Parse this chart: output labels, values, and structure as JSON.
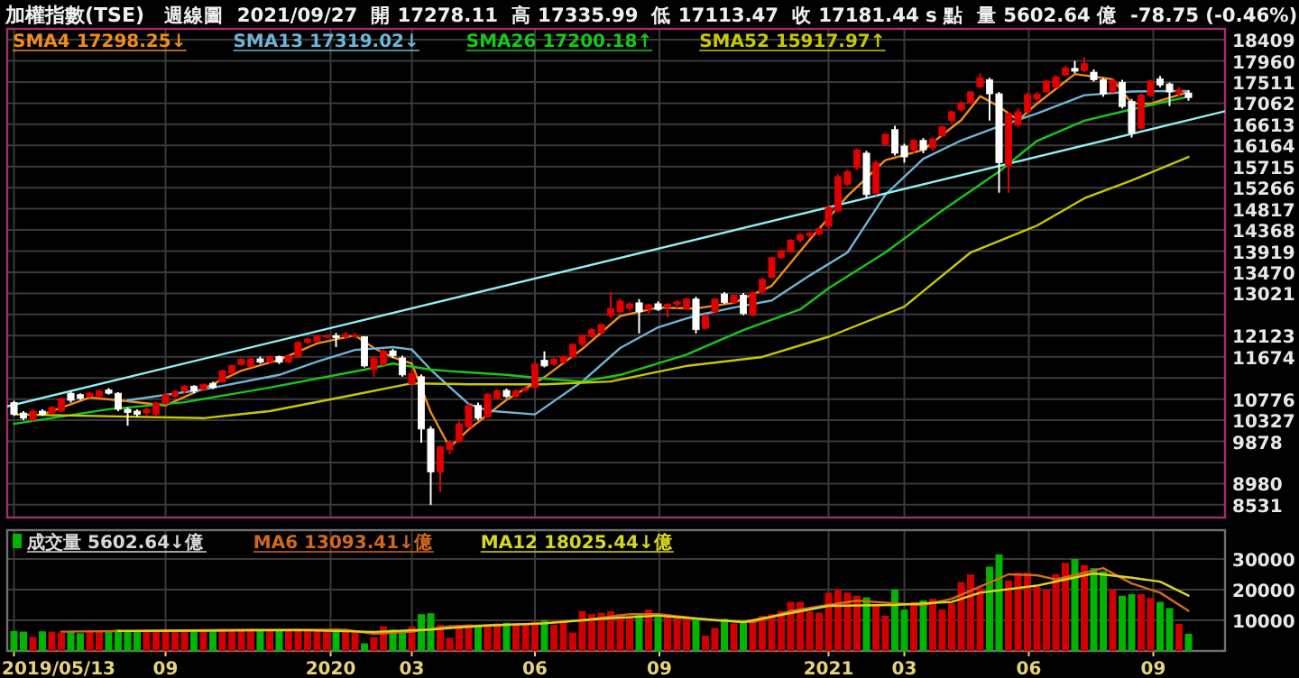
{
  "chart_data": [
    {
      "type": "candlestick",
      "title": "加權指數(TSE)",
      "subtitle": "週線圖  2021/09/27  開 17278.11  高 17335.99  低 17113.47  收 17181.44 s 點  量 5602.64 億  -78.75 (-0.46%)",
      "x": [
        "2019-05-13",
        "2019-05-20",
        "2019-05-27",
        "2019-06-03",
        "2019-06-10",
        "2019-06-17",
        "2019-06-24",
        "2019-07-01",
        "2019-07-08",
        "2019-07-15",
        "2019-07-22",
        "2019-07-29",
        "2019-08-05",
        "2019-08-12",
        "2019-08-19",
        "2019-08-26",
        "2019-09-02",
        "2019-09-09",
        "2019-09-16",
        "2019-09-23",
        "2019-09-30",
        "2019-10-07",
        "2019-10-14",
        "2019-10-21",
        "2019-10-28",
        "2019-11-04",
        "2019-11-11",
        "2019-11-18",
        "2019-11-25",
        "2019-12-02",
        "2019-12-09",
        "2019-12-16",
        "2019-12-23",
        "2019-12-30",
        "2020-01-06",
        "2020-01-13",
        "2020-01-20",
        "2020-01-27",
        "2020-02-03",
        "2020-02-10",
        "2020-02-17",
        "2020-02-24",
        "2020-03-02",
        "2020-03-09",
        "2020-03-16",
        "2020-03-23",
        "2020-03-30",
        "2020-04-06",
        "2020-04-13",
        "2020-04-20",
        "2020-04-27",
        "2020-05-04",
        "2020-05-11",
        "2020-05-18",
        "2020-05-25",
        "2020-06-01",
        "2020-06-08",
        "2020-06-15",
        "2020-06-22",
        "2020-06-29",
        "2020-07-06",
        "2020-07-13",
        "2020-07-20",
        "2020-07-27",
        "2020-08-03",
        "2020-08-10",
        "2020-08-17",
        "2020-08-24",
        "2020-08-31",
        "2020-09-07",
        "2020-09-14",
        "2020-09-21",
        "2020-09-28",
        "2020-10-05",
        "2020-10-12",
        "2020-10-19",
        "2020-10-26",
        "2020-11-02",
        "2020-11-09",
        "2020-11-16",
        "2020-11-23",
        "2020-11-30",
        "2020-12-07",
        "2020-12-14",
        "2020-12-21",
        "2020-12-28",
        "2021-01-04",
        "2021-01-11",
        "2021-01-18",
        "2021-01-25",
        "2021-02-01",
        "2021-02-08",
        "2021-02-15",
        "2021-02-22",
        "2021-03-01",
        "2021-03-08",
        "2021-03-15",
        "2021-03-22",
        "2021-03-29",
        "2021-04-05",
        "2021-04-12",
        "2021-04-19",
        "2021-04-26",
        "2021-05-03",
        "2021-05-10",
        "2021-05-17",
        "2021-05-24",
        "2021-05-31",
        "2021-06-07",
        "2021-06-14",
        "2021-06-21",
        "2021-06-28",
        "2021-07-05",
        "2021-07-12",
        "2021-07-19",
        "2021-07-26",
        "2021-08-02",
        "2021-08-09",
        "2021-08-16",
        "2021-08-23",
        "2021-08-30",
        "2021-09-06",
        "2021-09-13",
        "2021-09-20",
        "2021-09-27"
      ],
      "ohlc": [
        [
          10700,
          10740,
          10420,
          10450
        ],
        [
          10480,
          10520,
          10330,
          10370
        ],
        [
          10330,
          10560,
          10300,
          10520
        ],
        [
          10520,
          10560,
          10420,
          10445
        ],
        [
          10480,
          10630,
          10450,
          10600
        ],
        [
          10520,
          10800,
          10500,
          10790
        ],
        [
          10900,
          10950,
          10700,
          10750
        ],
        [
          10870,
          10900,
          10760,
          10790
        ],
        [
          10830,
          10930,
          10800,
          10900
        ],
        [
          10830,
          10980,
          10800,
          10950
        ],
        [
          10970,
          11010,
          10870,
          10900
        ],
        [
          10900,
          10920,
          10520,
          10560
        ],
        [
          10560,
          10600,
          10210,
          10490
        ],
        [
          10520,
          10560,
          10400,
          10450
        ],
        [
          10480,
          10600,
          10430,
          10560
        ],
        [
          10450,
          10720,
          10420,
          10690
        ],
        [
          10680,
          10900,
          10650,
          10870
        ],
        [
          10830,
          10960,
          10800,
          10930
        ],
        [
          10950,
          11080,
          10900,
          11050
        ],
        [
          11050,
          11070,
          10900,
          10950
        ],
        [
          10980,
          11110,
          10950,
          11090
        ],
        [
          11110,
          11140,
          10990,
          11020
        ],
        [
          11140,
          11400,
          11120,
          11380
        ],
        [
          11330,
          11510,
          11300,
          11490
        ],
        [
          11510,
          11640,
          11480,
          11620
        ],
        [
          11470,
          11650,
          11450,
          11630
        ],
        [
          11630,
          11680,
          11530,
          11560
        ],
        [
          11570,
          11700,
          11540,
          11680
        ],
        [
          11680,
          11700,
          11520,
          11560
        ],
        [
          11560,
          11710,
          11540,
          11690
        ],
        [
          11670,
          12000,
          11650,
          11980
        ],
        [
          11980,
          12070,
          11950,
          12050
        ],
        [
          12000,
          12140,
          11980,
          12120
        ],
        [
          12110,
          12150,
          12070,
          12130
        ],
        [
          12120,
          12180,
          11880,
          12090
        ],
        [
          12100,
          12200,
          12060,
          12150
        ],
        [
          12110,
          12180,
          12080,
          12140
        ],
        [
          12100,
          12110,
          11450,
          11480
        ],
        [
          11400,
          11680,
          11250,
          11650
        ],
        [
          11500,
          11830,
          11480,
          11800
        ],
        [
          11800,
          11840,
          11650,
          11700
        ],
        [
          11650,
          11700,
          11250,
          11290
        ],
        [
          11100,
          11400,
          11050,
          11320
        ],
        [
          11250,
          11300,
          9850,
          10140
        ],
        [
          10140,
          10200,
          8530,
          9230
        ],
        [
          9230,
          9780,
          8800,
          9760
        ],
        [
          9700,
          9900,
          9600,
          9860
        ],
        [
          9880,
          10300,
          9850,
          10250
        ],
        [
          10180,
          10680,
          10150,
          10640
        ],
        [
          10640,
          10700,
          10330,
          10370
        ],
        [
          10400,
          10900,
          10380,
          10880
        ],
        [
          10790,
          10980,
          10750,
          10950
        ],
        [
          10960,
          11000,
          10800,
          10830
        ],
        [
          10830,
          10980,
          10800,
          10950
        ],
        [
          10960,
          11050,
          10930,
          11010
        ],
        [
          11020,
          11550,
          11000,
          11520
        ],
        [
          11600,
          11790,
          11450,
          11480
        ],
        [
          11520,
          11650,
          11480,
          11620
        ],
        [
          11560,
          11700,
          11530,
          11680
        ],
        [
          11670,
          11960,
          11650,
          11940
        ],
        [
          11940,
          12150,
          11900,
          12130
        ],
        [
          12100,
          12280,
          12080,
          12250
        ],
        [
          12180,
          12380,
          12150,
          12360
        ],
        [
          12550,
          13050,
          12500,
          12700
        ],
        [
          12630,
          12900,
          12600,
          12860
        ],
        [
          12700,
          12830,
          12650,
          12800
        ],
        [
          12820,
          12900,
          12170,
          12630
        ],
        [
          12680,
          12800,
          12600,
          12780
        ],
        [
          12800,
          12850,
          12650,
          12680
        ],
        [
          12720,
          12820,
          12510,
          12790
        ],
        [
          12790,
          12880,
          12700,
          12840
        ],
        [
          12700,
          12930,
          12680,
          12900
        ],
        [
          12900,
          12950,
          12170,
          12250
        ],
        [
          12280,
          12580,
          12250,
          12550
        ],
        [
          12630,
          12920,
          12600,
          12900
        ],
        [
          13010,
          13050,
          12800,
          12830
        ],
        [
          12830,
          13000,
          12800,
          12980
        ],
        [
          12980,
          13030,
          12560,
          12590
        ],
        [
          12560,
          13060,
          12530,
          13030
        ],
        [
          13050,
          13350,
          13030,
          13320
        ],
        [
          13360,
          13800,
          13340,
          13780
        ],
        [
          13780,
          13950,
          13750,
          13930
        ],
        [
          13900,
          14180,
          13880,
          14150
        ],
        [
          14150,
          14300,
          14100,
          14270
        ],
        [
          14250,
          14330,
          14200,
          14300
        ],
        [
          14280,
          14420,
          14250,
          14400
        ],
        [
          14450,
          14900,
          14400,
          14850
        ],
        [
          14770,
          15550,
          14750,
          15500
        ],
        [
          15340,
          15650,
          15300,
          15610
        ],
        [
          15690,
          16100,
          15650,
          16070
        ],
        [
          16000,
          16050,
          15040,
          15120
        ],
        [
          15150,
          15850,
          15100,
          15800
        ],
        [
          16190,
          16420,
          16150,
          16400
        ],
        [
          16500,
          16580,
          15950,
          16000
        ],
        [
          16150,
          16200,
          15800,
          15920
        ],
        [
          16070,
          16300,
          16000,
          16270
        ],
        [
          16270,
          16320,
          16000,
          16070
        ],
        [
          16110,
          16330,
          16050,
          16300
        ],
        [
          16370,
          16580,
          16350,
          16560
        ],
        [
          16690,
          16900,
          16650,
          16880
        ],
        [
          16920,
          17100,
          16880,
          17070
        ],
        [
          17070,
          17320,
          17050,
          17300
        ],
        [
          17410,
          17700,
          17380,
          17600
        ],
        [
          17560,
          17600,
          16690,
          17260
        ],
        [
          17260,
          17300,
          15160,
          15800
        ],
        [
          15730,
          16870,
          15160,
          16840
        ],
        [
          16600,
          16950,
          16550,
          16880
        ],
        [
          16880,
          17280,
          16850,
          17240
        ],
        [
          17150,
          17300,
          17100,
          17250
        ],
        [
          17300,
          17560,
          17280,
          17530
        ],
        [
          17400,
          17650,
          17380,
          17620
        ],
        [
          17660,
          17850,
          17640,
          17810
        ],
        [
          17800,
          17960,
          17700,
          17740
        ],
        [
          17750,
          18030,
          17720,
          17900
        ],
        [
          17720,
          17780,
          17520,
          17560
        ],
        [
          17560,
          17600,
          17200,
          17260
        ],
        [
          17300,
          17580,
          17280,
          17540
        ],
        [
          17500,
          17560,
          16950,
          16990
        ],
        [
          17100,
          17150,
          16330,
          16430
        ],
        [
          16530,
          17260,
          16500,
          17230
        ],
        [
          17230,
          17560,
          17200,
          17530
        ],
        [
          17580,
          17640,
          17400,
          17450
        ],
        [
          17470,
          17500,
          17000,
          17300
        ],
        [
          17280,
          17400,
          17200,
          17350
        ],
        [
          17278.11,
          17335.99,
          17113.47,
          17181.44
        ]
      ],
      "colors": [
        "#ffffff",
        "#ffffff",
        "#e00000",
        "#ffffff",
        "#e00000",
        "#e00000",
        "#ffffff",
        "#ffffff",
        "#e00000",
        "#e00000",
        "#ffffff",
        "#ffffff",
        "#ffffff",
        "#ffffff",
        "#e00000",
        "#e00000",
        "#e00000",
        "#e00000",
        "#e00000",
        "#ffffff",
        "#e00000",
        "#ffffff",
        "#e00000",
        "#e00000",
        "#e00000",
        "#e00000",
        "#ffffff",
        "#e00000",
        "#ffffff",
        "#e00000",
        "#e00000",
        "#e00000",
        "#e00000",
        "#e00000",
        "#ffffff",
        "#e00000",
        "#e00000",
        "#ffffff",
        "#e00000",
        "#e00000",
        "#ffffff",
        "#ffffff",
        "#e00000",
        "#ffffff",
        "#ffffff",
        "#e00000",
        "#e00000",
        "#e00000",
        "#e00000",
        "#ffffff",
        "#e00000",
        "#e00000",
        "#ffffff",
        "#e00000",
        "#e00000",
        "#e00000",
        "#ffffff",
        "#e00000",
        "#e00000",
        "#e00000",
        "#e00000",
        "#e00000",
        "#e00000",
        "#e00000",
        "#e00000",
        "#e00000",
        "#ffffff",
        "#e00000",
        "#ffffff",
        "#e00000",
        "#e00000",
        "#e00000",
        "#ffffff",
        "#e00000",
        "#e00000",
        "#ffffff",
        "#e00000",
        "#ffffff",
        "#e00000",
        "#e00000",
        "#e00000",
        "#e00000",
        "#e00000",
        "#e00000",
        "#e00000",
        "#e00000",
        "#e00000",
        "#e00000",
        "#e00000",
        "#e00000",
        "#ffffff",
        "#e00000",
        "#e00000",
        "#ffffff",
        "#ffffff",
        "#e00000",
        "#ffffff",
        "#e00000",
        "#e00000",
        "#e00000",
        "#e00000",
        "#e00000",
        "#e00000",
        "#ffffff",
        "#ffffff",
        "#e00000",
        "#e00000",
        "#e00000",
        "#e00000",
        "#e00000",
        "#e00000",
        "#e00000",
        "#ffffff",
        "#e00000",
        "#ffffff",
        "#ffffff",
        "#e00000",
        "#ffffff",
        "#ffffff",
        "#e00000",
        "#e00000",
        "#ffffff",
        "#ffffff",
        "#e00000",
        "#ffffff"
      ],
      "series": [
        {
          "name": "SMA4 17298.25↓",
          "type": "line",
          "color": "#f08c1e",
          "x": [
            "2019-06-03",
            "2019-07-08",
            "2019-08-05",
            "2019-09-02",
            "2019-09-30",
            "2019-10-28",
            "2019-11-25",
            "2019-12-23",
            "2020-01-20",
            "2020-02-03",
            "2020-02-17",
            "2020-03-02",
            "2020-03-16",
            "2020-03-30",
            "2020-04-13",
            "2020-05-11",
            "2020-06-08",
            "2020-07-06",
            "2020-08-03",
            "2020-08-31",
            "2020-09-28",
            "2020-10-26",
            "2020-11-23",
            "2020-12-21",
            "2021-01-18",
            "2021-02-15",
            "2021-03-15",
            "2021-04-12",
            "2021-04-26",
            "2021-05-10",
            "2021-05-24",
            "2021-06-07",
            "2021-07-05",
            "2021-08-02",
            "2021-08-16",
            "2021-08-30",
            "2021-09-27"
          ],
          "values": [
            10450,
            10810,
            10730,
            10640,
            11000,
            11380,
            11610,
            11960,
            12130,
            11860,
            11660,
            11530,
            10500,
            9750,
            10130,
            10760,
            11240,
            11840,
            12540,
            12720,
            12700,
            12820,
            13180,
            14160,
            15090,
            15850,
            16070,
            16700,
            17210,
            16990,
            16700,
            17050,
            17680,
            17570,
            17060,
            17050,
            17300
          ]
        },
        {
          "name": "SMA13 17319.02↓",
          "type": "line",
          "color": "#6fb4d6",
          "x": [
            "2019-08-05",
            "2019-09-30",
            "2019-11-25",
            "2019-12-23",
            "2020-01-20",
            "2020-02-17",
            "2020-03-02",
            "2020-03-16",
            "2020-04-13",
            "2020-04-27",
            "2020-06-01",
            "2020-07-06",
            "2020-08-03",
            "2020-08-31",
            "2020-09-28",
            "2020-10-26",
            "2020-11-23",
            "2020-12-21",
            "2021-01-18",
            "2021-02-15",
            "2021-03-15",
            "2021-04-12",
            "2021-05-10",
            "2021-06-07",
            "2021-07-12",
            "2021-08-16",
            "2021-09-27"
          ],
          "values": [
            10750,
            10980,
            11290,
            11570,
            11820,
            11880,
            11830,
            11400,
            10670,
            10530,
            10450,
            11150,
            11860,
            12300,
            12550,
            12720,
            12870,
            13400,
            13890,
            15120,
            15880,
            16270,
            16570,
            16840,
            17230,
            17310,
            17320
          ]
        },
        {
          "name": "SMA26 17200.18↑",
          "type": "line",
          "color": "#18c818",
          "x": [
            "2019-05-13",
            "2019-07-22",
            "2019-09-16",
            "2019-11-18",
            "2020-01-27",
            "2020-02-17",
            "2020-03-16",
            "2020-03-30",
            "2020-05-11",
            "2020-06-08",
            "2020-07-06",
            "2020-08-03",
            "2020-09-21",
            "2020-11-02",
            "2020-12-14",
            "2021-01-04",
            "2021-02-15",
            "2021-03-29",
            "2021-05-10",
            "2021-06-07",
            "2021-07-12",
            "2021-08-16",
            "2021-09-27"
          ],
          "values": [
            10250,
            10560,
            10710,
            11020,
            11400,
            11530,
            11400,
            11370,
            11290,
            11210,
            11150,
            11290,
            11720,
            12240,
            12680,
            13130,
            13890,
            14780,
            15610,
            16260,
            16690,
            16930,
            17200
          ]
        },
        {
          "name": "SMA52 15917.97↑",
          "type": "line",
          "color": "#c8c800",
          "x": [
            "2019-05-13",
            "2019-09-30",
            "2019-11-18",
            "2020-01-13",
            "2020-03-02",
            "2020-04-13",
            "2020-06-08",
            "2020-07-27",
            "2020-09-21",
            "2020-11-16",
            "2021-01-04",
            "2021-03-01",
            "2021-04-19",
            "2021-06-07",
            "2021-07-12",
            "2021-08-16",
            "2021-09-27"
          ],
          "values": [
            10450,
            10370,
            10520,
            10830,
            11110,
            11090,
            11090,
            11150,
            11480,
            11670,
            12100,
            12740,
            13890,
            14460,
            15040,
            15420,
            15920
          ]
        },
        {
          "type": "line",
          "color": "#8ff0f8",
          "x": [
            "2019-05-08",
            "2021-10-24"
          ],
          "values": [
            10620,
            16890
          ]
        }
      ],
      "xlim": [
        "2019-05-08",
        "2021-10-24"
      ],
      "ylim": [
        8260,
        18640
      ],
      "xticks": [
        {
          "value": "2019-05-13",
          "label": null
        },
        {
          "value": "2019-09-02",
          "label": null
        },
        {
          "value": "2020-01-02",
          "label": null
        },
        {
          "value": "2020-03-02",
          "label": null
        },
        {
          "value": "2020-06-01",
          "label": null
        },
        {
          "value": "2020-09-01",
          "label": null
        },
        {
          "value": "2021-01-04",
          "label": null
        },
        {
          "value": "2021-03-01",
          "label": null
        },
        {
          "value": "2021-06-01",
          "label": null
        },
        {
          "value": "2021-09-01",
          "label": null
        }
      ],
      "yticks": [
        8531,
        8980,
        {
          "value": 9429,
          "label": null
        },
        9878,
        10327,
        10776,
        {
          "value": 11225,
          "label": null
        },
        11674,
        12123,
        {
          "value": 12572,
          "label": null
        },
        13021,
        13470,
        13919,
        14368,
        14817,
        15266,
        15715,
        16164,
        16613,
        17062,
        17511,
        17960,
        18409
      ],
      "tick_labels": "y",
      "grid": true,
      "legend": "top left"
    },
    {
      "type": "bar",
      "x": [
        "2019-05-13",
        "2019-05-20",
        "2019-05-27",
        "2019-06-03",
        "2019-06-10",
        "2019-06-17",
        "2019-06-24",
        "2019-07-01",
        "2019-07-08",
        "2019-07-15",
        "2019-07-22",
        "2019-07-29",
        "2019-08-05",
        "2019-08-12",
        "2019-08-19",
        "2019-08-26",
        "2019-09-02",
        "2019-09-09",
        "2019-09-16",
        "2019-09-23",
        "2019-09-30",
        "2019-10-07",
        "2019-10-14",
        "2019-10-21",
        "2019-10-28",
        "2019-11-04",
        "2019-11-11",
        "2019-11-18",
        "2019-11-25",
        "2019-12-02",
        "2019-12-09",
        "2019-12-16",
        "2019-12-23",
        "2019-12-30",
        "2020-01-06",
        "2020-01-13",
        "2020-01-20",
        "2020-01-27",
        "2020-02-03",
        "2020-02-10",
        "2020-02-17",
        "2020-02-24",
        "2020-03-02",
        "2020-03-09",
        "2020-03-16",
        "2020-03-23",
        "2020-03-30",
        "2020-04-06",
        "2020-04-13",
        "2020-04-20",
        "2020-04-27",
        "2020-05-04",
        "2020-05-11",
        "2020-05-18",
        "2020-05-25",
        "2020-06-01",
        "2020-06-08",
        "2020-06-15",
        "2020-06-22",
        "2020-06-29",
        "2020-07-06",
        "2020-07-13",
        "2020-07-20",
        "2020-07-27",
        "2020-08-03",
        "2020-08-10",
        "2020-08-17",
        "2020-08-24",
        "2020-08-31",
        "2020-09-07",
        "2020-09-14",
        "2020-09-21",
        "2020-09-28",
        "2020-10-05",
        "2020-10-12",
        "2020-10-19",
        "2020-10-26",
        "2020-11-02",
        "2020-11-09",
        "2020-11-16",
        "2020-11-23",
        "2020-11-30",
        "2020-12-07",
        "2020-12-14",
        "2020-12-21",
        "2020-12-28",
        "2021-01-04",
        "2021-01-11",
        "2021-01-18",
        "2021-01-25",
        "2021-02-01",
        "2021-02-08",
        "2021-02-15",
        "2021-02-22",
        "2021-03-01",
        "2021-03-08",
        "2021-03-15",
        "2021-03-22",
        "2021-03-29",
        "2021-04-05",
        "2021-04-12",
        "2021-04-19",
        "2021-04-26",
        "2021-05-03",
        "2021-05-10",
        "2021-05-17",
        "2021-05-24",
        "2021-05-31",
        "2021-06-07",
        "2021-06-14",
        "2021-06-21",
        "2021-06-28",
        "2021-07-05",
        "2021-07-12",
        "2021-07-19",
        "2021-07-26",
        "2021-08-02",
        "2021-08-09",
        "2021-08-16",
        "2021-08-23",
        "2021-08-30",
        "2021-09-06",
        "2021-09-13",
        "2021-09-20",
        "2021-09-27"
      ],
      "series": [
        {
          "name": "成交量 5602.64↓億",
          "type": "bar",
          "values": [
            6500,
            6300,
            4500,
            6400,
            6300,
            6000,
            6500,
            5800,
            6400,
            6500,
            6200,
            7000,
            6800,
            6600,
            6400,
            6200,
            6900,
            6700,
            6900,
            6800,
            6600,
            6500,
            7200,
            7000,
            7100,
            7300,
            6800,
            6600,
            6800,
            6700,
            7000,
            7200,
            6900,
            6800,
            7300,
            6500,
            6600,
            2500,
            4500,
            8000,
            7000,
            6800,
            8000,
            12000,
            12300,
            8500,
            4300,
            8500,
            8700,
            8400,
            8200,
            9000,
            9200,
            9000,
            8800,
            9500,
            10000,
            8500,
            10000,
            6000,
            13000,
            12000,
            12500,
            13000,
            12000,
            11000,
            12000,
            13500,
            11000,
            12000,
            11500,
            10500,
            10500,
            5000,
            7500,
            10500,
            9000,
            9500,
            9500,
            11500,
            12000,
            13000,
            16000,
            16000,
            12900,
            12500,
            19000,
            20000,
            19000,
            18000,
            17500,
            15000,
            11500,
            20000,
            13500,
            16000,
            16500,
            17000,
            13500,
            15500,
            22500,
            25000,
            20500,
            27500,
            31500,
            23000,
            25500,
            25500,
            21000,
            20000,
            25000,
            28700,
            30000,
            28000,
            27000,
            26000,
            20000,
            18000,
            18500,
            18500,
            17300,
            16000,
            14000,
            8800,
            5600
          ],
          "colors": [
            "#00b400",
            "#00b400",
            "#d00000",
            "#00b400",
            "#d00000",
            "#d00000",
            "#00b400",
            "#00b400",
            "#d00000",
            "#d00000",
            "#00b400",
            "#00b400",
            "#00b400",
            "#00b400",
            "#d00000",
            "#d00000",
            "#d00000",
            "#d00000",
            "#d00000",
            "#00b400",
            "#d00000",
            "#00b400",
            "#d00000",
            "#d00000",
            "#d00000",
            "#d00000",
            "#00b400",
            "#d00000",
            "#00b400",
            "#d00000",
            "#d00000",
            "#d00000",
            "#d00000",
            "#d00000",
            "#00b400",
            "#d00000",
            "#d00000",
            "#00b400",
            "#d00000",
            "#d00000",
            "#00b400",
            "#00b400",
            "#d00000",
            "#00b400",
            "#00b400",
            "#d00000",
            "#d00000",
            "#d00000",
            "#d00000",
            "#00b400",
            "#d00000",
            "#d00000",
            "#00b400",
            "#d00000",
            "#d00000",
            "#d00000",
            "#00b400",
            "#d00000",
            "#d00000",
            "#d00000",
            "#d00000",
            "#d00000",
            "#d00000",
            "#d00000",
            "#d00000",
            "#d00000",
            "#00b400",
            "#d00000",
            "#00b400",
            "#d00000",
            "#d00000",
            "#d00000",
            "#00b400",
            "#d00000",
            "#d00000",
            "#00b400",
            "#d00000",
            "#00b400",
            "#d00000",
            "#d00000",
            "#d00000",
            "#d00000",
            "#d00000",
            "#d00000",
            "#d00000",
            "#d00000",
            "#d00000",
            "#d00000",
            "#d00000",
            "#d00000",
            "#00b400",
            "#d00000",
            "#d00000",
            "#00b400",
            "#00b400",
            "#d00000",
            "#00b400",
            "#d00000",
            "#d00000",
            "#d00000",
            "#d00000",
            "#d00000",
            "#d00000",
            "#00b400",
            "#00b400",
            "#d00000",
            "#d00000",
            "#d00000",
            "#d00000",
            "#d00000",
            "#d00000",
            "#d00000",
            "#00b400",
            "#d00000",
            "#00b400",
            "#00b400",
            "#d00000",
            "#00b400",
            "#00b400",
            "#d00000",
            "#d00000",
            "#00b400",
            "#00b400",
            "#d00000",
            "#00b400"
          ]
        },
        {
          "name": "MA6 13093.41↓億",
          "type": "line",
          "color": "#d2691e",
          "x": [
            "2019-06-17",
            "2019-08-26",
            "2019-11-04",
            "2020-01-13",
            "2020-02-03",
            "2020-03-02",
            "2020-03-30",
            "2020-04-27",
            "2020-06-01",
            "2020-07-06",
            "2020-08-10",
            "2020-08-31",
            "2020-10-12",
            "2020-11-09",
            "2020-12-07",
            "2021-01-04",
            "2021-01-25",
            "2021-02-22",
            "2021-03-15",
            "2021-04-05",
            "2021-04-26",
            "2021-05-17",
            "2021-06-07",
            "2021-06-21",
            "2021-07-26",
            "2021-08-16",
            "2021-09-06",
            "2021-09-27"
          ],
          "values": [
            6300,
            6600,
            6900,
            6900,
            5600,
            6300,
            8000,
            8300,
            8800,
            10000,
            12000,
            12000,
            10000,
            9400,
            13000,
            15000,
            16400,
            15500,
            15000,
            17000,
            21000,
            25000,
            24700,
            23300,
            27000,
            22000,
            19000,
            13090
          ]
        },
        {
          "name": "MA12 18025.44↓億",
          "type": "line",
          "color": "#d8d820",
          "x": [
            "2019-07-29",
            "2019-09-30",
            "2019-12-09",
            "2020-02-03",
            "2020-03-16",
            "2020-04-27",
            "2020-06-08",
            "2020-07-20",
            "2020-08-31",
            "2020-11-02",
            "2021-01-04",
            "2021-02-22",
            "2021-04-05",
            "2021-04-26",
            "2021-06-07",
            "2021-06-28",
            "2021-07-19",
            "2021-08-16",
            "2021-09-06",
            "2021-09-27"
          ],
          "values": [
            6500,
            6600,
            6800,
            6200,
            7000,
            8300,
            9000,
            10500,
            11500,
            9400,
            14700,
            15000,
            16000,
            19000,
            21300,
            23300,
            25300,
            23900,
            22600,
            18030
          ]
        }
      ],
      "xlim": [
        "2019-05-08",
        "2021-10-24"
      ],
      "ylim": [
        0,
        39400
      ],
      "xticks": [
        {
          "value": "2019-05-13",
          "label": "2019/05/13"
        },
        {
          "value": "2019-09-02",
          "label": "09"
        },
        {
          "value": "2020-01-02",
          "label": "2020"
        },
        {
          "value": "2020-03-02",
          "label": "03"
        },
        {
          "value": "2020-06-01",
          "label": "06"
        },
        {
          "value": "2020-09-01",
          "label": "09"
        },
        {
          "value": "2021-01-04",
          "label": "2021"
        },
        {
          "value": "2021-03-01",
          "label": "03"
        },
        {
          "value": "2021-06-01",
          "label": "06"
        },
        {
          "value": "2021-09-01",
          "label": "09"
        }
      ],
      "yticks": [
        10000,
        20000,
        30000
      ],
      "grid": true,
      "legend": "top left"
    }
  ]
}
